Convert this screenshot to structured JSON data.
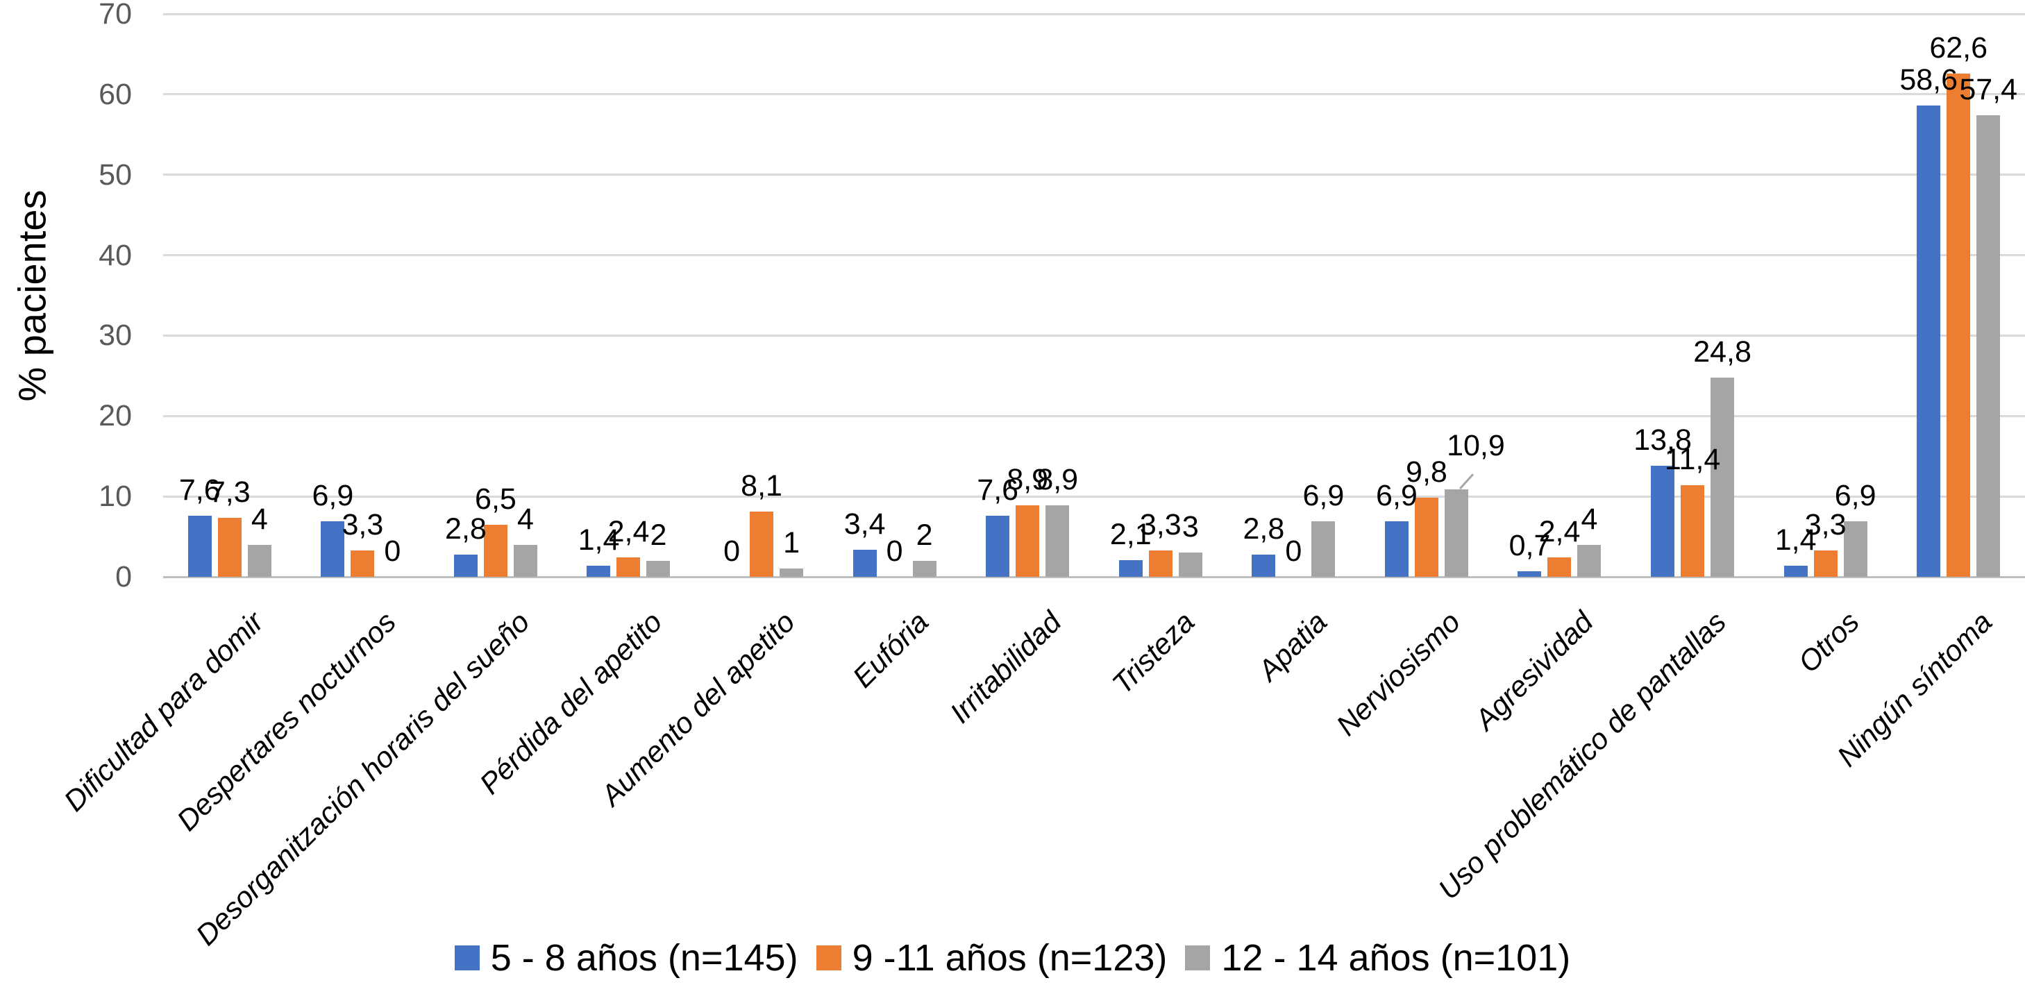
{
  "chart_data": {
    "type": "bar",
    "title": "",
    "xlabel": "",
    "ylabel": "% pacientes",
    "ylim": [
      0,
      70
    ],
    "yticks": [
      0,
      10,
      20,
      30,
      40,
      50,
      60,
      70
    ],
    "grid": true,
    "legend_position": "bottom-center",
    "background": "#ffffff",
    "gridline_color": "#D9D9D9",
    "axis_line_color": "#BFBFBF",
    "tick_label_color": "#595959",
    "data_label_color": "#000000",
    "categories": [
      "Dificultad para domir",
      "Despertares nocturnos",
      "Desorganitzación horaris del sueño",
      "Pérdida del apetito",
      "Aumento del apetito",
      "Eufória",
      "Irritabilidad",
      "Tristeza",
      "Apatia",
      "Nerviosismo",
      "Agresividad",
      "Uso problemático de pantallas",
      "Otros",
      "Ningún síntoma"
    ],
    "series": [
      {
        "name": "5 - 8 años (n=145)",
        "color": "#4472C4",
        "values": [
          7.6,
          6.9,
          2.8,
          1.4,
          0,
          3.4,
          7.6,
          2.1,
          2.8,
          6.9,
          0.7,
          13.8,
          1.4,
          58.6
        ],
        "labels": [
          "7,6",
          "6,9",
          "2,8",
          "1,4",
          "0",
          "3,4",
          "7,6",
          "2,1",
          "2,8",
          "6,9",
          "0,7",
          "13,8",
          "1,4",
          "58,6"
        ]
      },
      {
        "name": "9 -11 años (n=123)",
        "color": "#ED7D31",
        "values": [
          7.3,
          3.3,
          6.5,
          2.4,
          8.1,
          0,
          8.9,
          3.3,
          0,
          9.8,
          2.4,
          11.4,
          3.3,
          62.6
        ],
        "labels": [
          "7,3",
          "3,3",
          "6,5",
          "2,4",
          "8,1",
          "0",
          "8,9",
          "3,3",
          "0",
          "9,8",
          "2,4",
          "11,4",
          "3,3",
          "62,6"
        ]
      },
      {
        "name": "12 - 14 años (n=101)",
        "color": "#A5A5A5",
        "values": [
          4,
          0,
          4,
          2,
          1,
          2,
          8.9,
          3,
          6.9,
          10.9,
          4,
          24.8,
          6.9,
          57.4
        ],
        "labels": [
          "4",
          "0",
          "4",
          "2",
          "1",
          "2",
          "8,9",
          "3",
          "6,9",
          "10,9",
          "4",
          "24,8",
          "6,9",
          "57,4"
        ]
      }
    ],
    "annotations": [
      {
        "series": 2,
        "category": 9,
        "note": "moved data label with gray leader line",
        "label_dx": 28,
        "label_dy": 26,
        "leader": {
          "x1": 1867,
          "y1": 683,
          "x2": 1886,
          "y2": 662
        }
      }
    ]
  }
}
